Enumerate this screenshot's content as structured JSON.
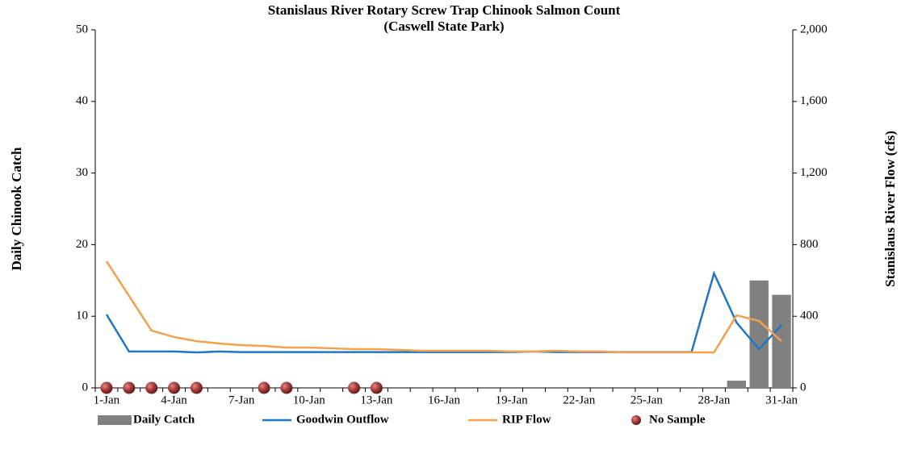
{
  "chart_data": {
    "type": "combo",
    "title": "Stanislaus River Rotary Screw Trap Chinook Salmon Count",
    "subtitle": "(Caswell State Park)",
    "ylabel": "Daily Chinook Catch",
    "y2label": "Stanislaus River Flow (cfs)",
    "categories": [
      "1-Jan",
      null,
      null,
      "4-Jan",
      null,
      null,
      "7-Jan",
      null,
      null,
      "10-Jan",
      null,
      null,
      "13-Jan",
      null,
      null,
      "16-Jan",
      null,
      null,
      "19-Jan",
      null,
      null,
      "22-Jan",
      null,
      null,
      "25-Jan",
      null,
      null,
      "28-Jan",
      null,
      null,
      "31-Jan"
    ],
    "ylim": [
      0,
      50
    ],
    "yticks": [
      0,
      10,
      20,
      30,
      40,
      50
    ],
    "y2lim": [
      0,
      2000
    ],
    "y2ticks": [
      0,
      400,
      800,
      {
        "value": 1200,
        "label": "1,200"
      },
      {
        "value": 1600,
        "label": "1,600"
      },
      {
        "value": 2000,
        "label": "2,000"
      }
    ],
    "legend": "bottom",
    "series": [
      {
        "name": "Daily Catch",
        "type": "bar",
        "color": "#808080",
        "values": [
          0,
          0,
          0,
          0,
          0,
          0,
          0,
          0,
          0,
          0,
          0,
          0,
          0,
          0,
          0,
          0,
          0,
          0,
          0,
          0,
          0,
          0,
          0,
          0,
          0,
          0,
          0,
          0,
          1,
          15,
          13
        ]
      },
      {
        "name": "Goodwin Outflow",
        "type": "line",
        "axis": "y2",
        "color": "#1f77c4",
        "values": [
          410,
          203,
          203,
          203,
          198,
          203,
          200,
          200,
          200,
          200,
          200,
          200,
          200,
          200,
          200,
          200,
          200,
          200,
          200,
          203,
          200,
          200,
          200,
          200,
          200,
          200,
          200,
          640,
          365,
          216,
          351
        ]
      },
      {
        "name": "RIP Flow",
        "type": "line",
        "axis": "y2",
        "color": "#f5a04a",
        "values": [
          707,
          514,
          320,
          284,
          261,
          248,
          239,
          234,
          225,
          225,
          221,
          216,
          216,
          212,
          207,
          207,
          207,
          207,
          203,
          203,
          207,
          203,
          203,
          198,
          198,
          198,
          198,
          198,
          405,
          374,
          261
        ]
      },
      {
        "name": "No Sample",
        "type": "scatter",
        "color": "#8b2b2b",
        "values": [
          0,
          0,
          0,
          0,
          0,
          null,
          null,
          0,
          0,
          null,
          null,
          0,
          0,
          null,
          null,
          null,
          null,
          null,
          null,
          null,
          null,
          null,
          null,
          null,
          null,
          null,
          null,
          null,
          null,
          null,
          null
        ]
      }
    ]
  }
}
